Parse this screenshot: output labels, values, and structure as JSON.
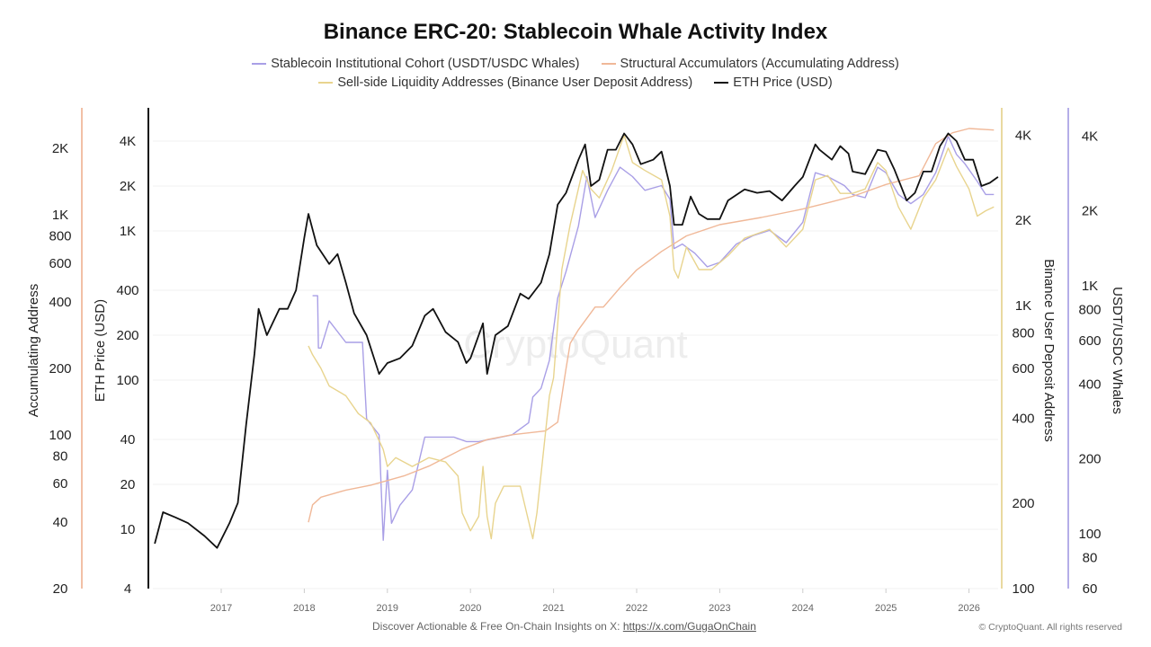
{
  "chart_data": {
    "type": "line",
    "title": "Binance ERC-20: Stablecoin Whale Activity Index",
    "x_ticks": [
      "2017",
      "2018",
      "2019",
      "2020",
      "2021",
      "2022",
      "2023",
      "2024",
      "2025",
      "2026"
    ],
    "xlim": [
      2016.2,
      2026.4
    ],
    "grid": "horizontal",
    "watermark": "CryptoQuant",
    "axes": {
      "accum": {
        "label": "Accumulating Address",
        "scale": "log",
        "ylim": [
          20,
          2800
        ],
        "ticks": [
          [
            "2K",
            2000
          ],
          [
            "1K",
            1000
          ],
          [
            "800",
            800
          ],
          [
            "600",
            600
          ],
          [
            "400",
            400
          ],
          [
            "200",
            200
          ],
          [
            "100",
            100
          ],
          [
            "80",
            80
          ],
          [
            "60",
            60
          ],
          [
            "40",
            40
          ],
          [
            "20",
            20
          ]
        ],
        "color": "#f2c0a6"
      },
      "eth": {
        "label": "ETH Price (USD)",
        "scale": "log",
        "ylim": [
          4,
          5500
        ],
        "ticks": [
          [
            "4K",
            4000
          ],
          [
            "2K",
            2000
          ],
          [
            "1K",
            1000
          ],
          [
            "400",
            400
          ],
          [
            "200",
            200
          ],
          [
            "100",
            100
          ],
          [
            "40",
            40
          ],
          [
            "20",
            20
          ],
          [
            "10",
            10
          ],
          [
            "4",
            4
          ]
        ],
        "color": "#111111"
      },
      "deposit": {
        "label": "Binance User Deposit Address",
        "scale": "log",
        "ylim": [
          100,
          4500
        ],
        "ticks": [
          [
            "4K",
            4000
          ],
          [
            "2K",
            2000
          ],
          [
            "1K",
            1000
          ],
          [
            "800",
            800
          ],
          [
            "600",
            600
          ],
          [
            "400",
            400
          ],
          [
            "200",
            200
          ],
          [
            "100",
            100
          ]
        ],
        "color": "#e9d9a0"
      },
      "whales": {
        "label": "USDT/USDC Whales",
        "scale": "log",
        "ylim": [
          60,
          4500
        ],
        "ticks": [
          [
            "4K",
            4000
          ],
          [
            "2K",
            2000
          ],
          [
            "1K",
            1000
          ],
          [
            "800",
            800
          ],
          [
            "600",
            600
          ],
          [
            "400",
            400
          ],
          [
            "200",
            200
          ],
          [
            "100",
            100
          ],
          [
            "80",
            80
          ],
          [
            "60",
            60
          ]
        ],
        "color": "#b5aee8"
      }
    },
    "legend_position": "top",
    "series": [
      {
        "name": "Stablecoin Institutional Cohort (USDT/USDC Whales)",
        "axis": "whales",
        "color": "#a99fe6",
        "x": [
          2018.1,
          2018.16,
          2018.17,
          2018.2,
          2018.3,
          2018.5,
          2018.7,
          2018.75,
          2018.9,
          2018.95,
          2019.0,
          2019.05,
          2019.15,
          2019.3,
          2019.45,
          2019.6,
          2019.8,
          2019.95,
          2020.1,
          2020.5,
          2020.7,
          2020.75,
          2020.85,
          2020.95,
          2021.05,
          2021.15,
          2021.3,
          2021.4,
          2021.5,
          2021.65,
          2021.8,
          2021.95,
          2022.1,
          2022.3,
          2022.4,
          2022.45,
          2022.55,
          2022.7,
          2022.85,
          2023.0,
          2023.2,
          2023.4,
          2023.6,
          2023.8,
          2024.0,
          2024.15,
          2024.3,
          2024.5,
          2024.6,
          2024.75,
          2024.9,
          2025.0,
          2025.15,
          2025.3,
          2025.45,
          2025.6,
          2025.75,
          2025.85,
          2025.95,
          2026.1,
          2026.2,
          2026.3
        ],
        "y": [
          910,
          910,
          560,
          560,
          720,
          590,
          590,
          290,
          250,
          94,
          180,
          110,
          130,
          150,
          245,
          245,
          245,
          235,
          235,
          250,
          280,
          355,
          385,
          500,
          890,
          1140,
          1740,
          2750,
          1880,
          2420,
          3000,
          2750,
          2420,
          2530,
          2230,
          1410,
          1470,
          1350,
          1190,
          1240,
          1470,
          1590,
          1670,
          1490,
          1800,
          2850,
          2750,
          2530,
          2330,
          2260,
          3000,
          2850,
          2330,
          2140,
          2330,
          2850,
          4000,
          3380,
          3100,
          2630,
          2330,
          2330
        ]
      },
      {
        "name": "Structural Accumulators (Accumulating Address)",
        "axis": "accum",
        "color": "#f0b898",
        "x": [
          2018.05,
          2018.1,
          2018.2,
          2018.5,
          2018.8,
          2019.2,
          2019.5,
          2019.9,
          2020.2,
          2020.5,
          2020.9,
          2021.05,
          2021.1,
          2021.15,
          2021.2,
          2021.3,
          2021.5,
          2021.6,
          2021.8,
          2022.0,
          2022.3,
          2022.6,
          2023.0,
          2023.5,
          2024.0,
          2024.3,
          2024.6,
          2025.0,
          2025.4,
          2025.6,
          2025.8,
          2026.0,
          2026.3
        ],
        "y": [
          40,
          48,
          52,
          56,
          59,
          65,
          72,
          86,
          95,
          100,
          104,
          114,
          150,
          200,
          260,
          300,
          380,
          380,
          465,
          560,
          680,
          800,
          900,
          970,
          1060,
          1130,
          1210,
          1370,
          1500,
          2100,
          2350,
          2460,
          2420
        ]
      },
      {
        "name": "Sell-side Liquidity Addresses (Binance User Deposit Address)",
        "axis": "deposit",
        "color": "#e8d48e",
        "x": [
          2018.05,
          2018.1,
          2018.2,
          2018.3,
          2018.5,
          2018.65,
          2018.8,
          2018.95,
          2019.0,
          2019.1,
          2019.3,
          2019.5,
          2019.7,
          2019.85,
          2019.9,
          2020.0,
          2020.1,
          2020.15,
          2020.2,
          2020.25,
          2020.3,
          2020.4,
          2020.6,
          2020.75,
          2020.8,
          2020.95,
          2021.0,
          2021.05,
          2021.1,
          2021.2,
          2021.35,
          2021.45,
          2021.55,
          2021.7,
          2021.85,
          2021.95,
          2022.1,
          2022.3,
          2022.4,
          2022.45,
          2022.5,
          2022.6,
          2022.75,
          2022.9,
          2023.1,
          2023.3,
          2023.6,
          2023.8,
          2024.0,
          2024.15,
          2024.3,
          2024.45,
          2024.6,
          2024.75,
          2024.9,
          2025.0,
          2025.15,
          2025.3,
          2025.45,
          2025.6,
          2025.75,
          2025.85,
          2026.0,
          2026.1,
          2026.2,
          2026.3
        ],
        "y": [
          720,
          670,
          600,
          520,
          480,
          415,
          385,
          310,
          270,
          290,
          270,
          290,
          280,
          250,
          185,
          160,
          180,
          270,
          180,
          150,
          200,
          230,
          230,
          150,
          185,
          480,
          555,
          860,
          1340,
          1930,
          3000,
          2580,
          2400,
          3000,
          4000,
          3200,
          3000,
          2780,
          2070,
          1340,
          1250,
          1610,
          1340,
          1340,
          1500,
          1730,
          1860,
          1610,
          1860,
          2780,
          2880,
          2490,
          2490,
          2580,
          3200,
          3000,
          2230,
          1860,
          2400,
          2780,
          3600,
          3100,
          2580,
          2070,
          2160,
          2230
        ]
      },
      {
        "name": "ETH Price (USD)",
        "axis": "eth",
        "color": "#111111",
        "x": [
          2016.2,
          2016.3,
          2016.45,
          2016.6,
          2016.8,
          2016.95,
          2017.1,
          2017.2,
          2017.3,
          2017.4,
          2017.45,
          2017.55,
          2017.7,
          2017.8,
          2017.9,
          2018.0,
          2018.05,
          2018.15,
          2018.3,
          2018.4,
          2018.5,
          2018.6,
          2018.75,
          2018.9,
          2019.0,
          2019.15,
          2019.3,
          2019.45,
          2019.55,
          2019.7,
          2019.85,
          2019.95,
          2020.0,
          2020.15,
          2020.2,
          2020.3,
          2020.45,
          2020.6,
          2020.7,
          2020.85,
          2020.95,
          2021.05,
          2021.15,
          2021.3,
          2021.38,
          2021.45,
          2021.55,
          2021.65,
          2021.75,
          2021.85,
          2021.95,
          2022.05,
          2022.2,
          2022.3,
          2022.4,
          2022.45,
          2022.55,
          2022.65,
          2022.75,
          2022.85,
          2023.0,
          2023.1,
          2023.3,
          2023.45,
          2023.6,
          2023.75,
          2023.9,
          2024.0,
          2024.15,
          2024.2,
          2024.35,
          2024.45,
          2024.55,
          2024.6,
          2024.75,
          2024.9,
          2025.0,
          2025.1,
          2025.25,
          2025.35,
          2025.45,
          2025.55,
          2025.65,
          2025.75,
          2025.85,
          2025.95,
          2026.05,
          2026.15,
          2026.25,
          2026.35
        ],
        "y": [
          8,
          13,
          12,
          11,
          9,
          7.5,
          11,
          15,
          50,
          150,
          300,
          200,
          300,
          300,
          400,
          900,
          1300,
          800,
          600,
          700,
          450,
          280,
          200,
          110,
          130,
          140,
          170,
          270,
          300,
          210,
          180,
          130,
          140,
          240,
          110,
          200,
          230,
          380,
          350,
          450,
          700,
          1500,
          1800,
          3000,
          3800,
          2000,
          2200,
          3500,
          3500,
          4500,
          3800,
          2800,
          3000,
          3400,
          2000,
          1100,
          1100,
          1700,
          1300,
          1200,
          1200,
          1600,
          1900,
          1800,
          1850,
          1600,
          2000,
          2300,
          3800,
          3500,
          3000,
          3700,
          3300,
          2500,
          2400,
          3500,
          3400,
          2600,
          1600,
          1800,
          2500,
          2500,
          3700,
          4500,
          4000,
          3000,
          3000,
          2000,
          2100,
          2300
        ]
      }
    ]
  },
  "legend": {
    "items": [
      {
        "label": "Stablecoin Institutional Cohort (USDT/USDC Whales)",
        "color": "#a99fe6"
      },
      {
        "label": "Structural Accumulators (Accumulating Address)",
        "color": "#f0b898"
      },
      {
        "label": "Sell-side Liquidity Addresses (Binance User Deposit Address)",
        "color": "#e8d48e"
      },
      {
        "label": "ETH Price (USD)",
        "color": "#111111"
      }
    ]
  },
  "footer": {
    "text": "Discover Actionable & Free On-Chain Insights on X: ",
    "link": "https://x.com/GugaOnChain",
    "copyright": "© CryptoQuant. All rights reserved"
  }
}
